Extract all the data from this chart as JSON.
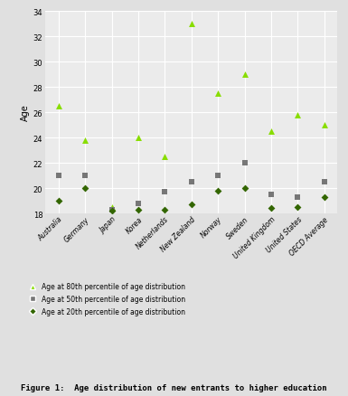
{
  "countries": [
    "Australia",
    "Germany",
    "Japan",
    "Korea",
    "Netherlands",
    "New Zealand",
    "Norway",
    "Sweden",
    "United Kingdom",
    "United States",
    "OECD Average"
  ],
  "p80": [
    26.5,
    23.8,
    18.5,
    24.0,
    22.5,
    33.0,
    27.5,
    29.0,
    24.5,
    25.8,
    25.0
  ],
  "p50": [
    21.0,
    21.0,
    18.3,
    18.8,
    19.7,
    20.5,
    21.0,
    22.0,
    19.5,
    19.3,
    20.5
  ],
  "p20": [
    19.0,
    20.0,
    18.2,
    18.3,
    18.3,
    18.7,
    19.8,
    20.0,
    18.4,
    18.5,
    19.3
  ],
  "color_triangle": "#88dd00",
  "color_square": "#777777",
  "color_diamond": "#336600",
  "line_color": "#888888",
  "bg_color": "#e0e0e0",
  "plot_bg_color": "#ebebeb",
  "grid_color": "#ffffff",
  "ylabel": "Age",
  "ylim_min": 18,
  "ylim_max": 34,
  "yticks": [
    18,
    20,
    22,
    24,
    26,
    28,
    30,
    32,
    34
  ],
  "title": "Figure 1:  Age distribution of new entrants to higher education",
  "legend_80": "Age at 80th percentile of age distribution",
  "legend_50": "Age at 50th percentile of age distribution",
  "legend_20": "Age at 20th percentile of age distribution"
}
